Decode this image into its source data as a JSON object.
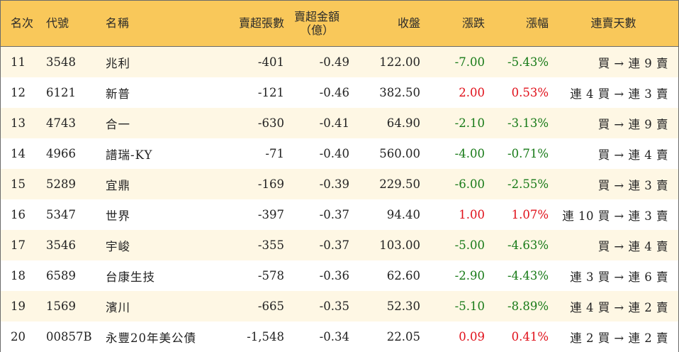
{
  "headers": {
    "rank": "名次",
    "code": "代號",
    "name": "名稱",
    "net_sell_lots": "賣超張數",
    "net_sell_amount": "賣超金額",
    "net_sell_amount_unit": "（億）",
    "close": "收盤",
    "change": "漲跌",
    "change_pct": "漲幅",
    "streak": "連賣天數"
  },
  "colors": {
    "header_bg": "#f9c85a",
    "row_alt_bg": "#fef7e4",
    "up": "#e0101a",
    "down": "#177a17"
  },
  "rows": [
    {
      "rank": "11",
      "code": "3548",
      "name": "兆利",
      "lots": "-401",
      "amount": "-0.49",
      "close": "122.00",
      "change": "-7.00",
      "pct": "-5.43%",
      "dir": "down",
      "streak": "買 → 連 9 賣"
    },
    {
      "rank": "12",
      "code": "6121",
      "name": "新普",
      "lots": "-121",
      "amount": "-0.46",
      "close": "382.50",
      "change": "2.00",
      "pct": "0.53%",
      "dir": "up",
      "streak": "連 4 買 → 連 3 賣"
    },
    {
      "rank": "13",
      "code": "4743",
      "name": "合一",
      "lots": "-630",
      "amount": "-0.41",
      "close": "64.90",
      "change": "-2.10",
      "pct": "-3.13%",
      "dir": "down",
      "streak": "買 → 連 9 賣"
    },
    {
      "rank": "14",
      "code": "4966",
      "name": "譜瑞-KY",
      "lots": "-71",
      "amount": "-0.40",
      "close": "560.00",
      "change": "-4.00",
      "pct": "-0.71%",
      "dir": "down",
      "streak": "買 → 連 4 賣"
    },
    {
      "rank": "15",
      "code": "5289",
      "name": "宜鼎",
      "lots": "-169",
      "amount": "-0.39",
      "close": "229.50",
      "change": "-6.00",
      "pct": "-2.55%",
      "dir": "down",
      "streak": "買 → 連 3 賣"
    },
    {
      "rank": "16",
      "code": "5347",
      "name": "世界",
      "lots": "-397",
      "amount": "-0.37",
      "close": "94.40",
      "change": "1.00",
      "pct": "1.07%",
      "dir": "up",
      "streak": "連 10 買 → 連 3 賣"
    },
    {
      "rank": "17",
      "code": "3546",
      "name": "宇峻",
      "lots": "-355",
      "amount": "-0.37",
      "close": "103.00",
      "change": "-5.00",
      "pct": "-4.63%",
      "dir": "down",
      "streak": "買 → 連 4 賣"
    },
    {
      "rank": "18",
      "code": "6589",
      "name": "台康生技",
      "lots": "-578",
      "amount": "-0.36",
      "close": "62.60",
      "change": "-2.90",
      "pct": "-4.43%",
      "dir": "down",
      "streak": "連 3 買 → 連 6 賣"
    },
    {
      "rank": "19",
      "code": "1569",
      "name": "濱川",
      "lots": "-665",
      "amount": "-0.35",
      "close": "52.30",
      "change": "-5.10",
      "pct": "-8.89%",
      "dir": "down",
      "streak": "連 4 買 → 連 2 賣"
    },
    {
      "rank": "20",
      "code": "00857B",
      "name": "永豐20年美公債",
      "lots": "-1,548",
      "amount": "-0.34",
      "close": "22.05",
      "change": "0.09",
      "pct": "0.41%",
      "dir": "up",
      "streak": "連 2 買 → 連 2 賣"
    }
  ]
}
